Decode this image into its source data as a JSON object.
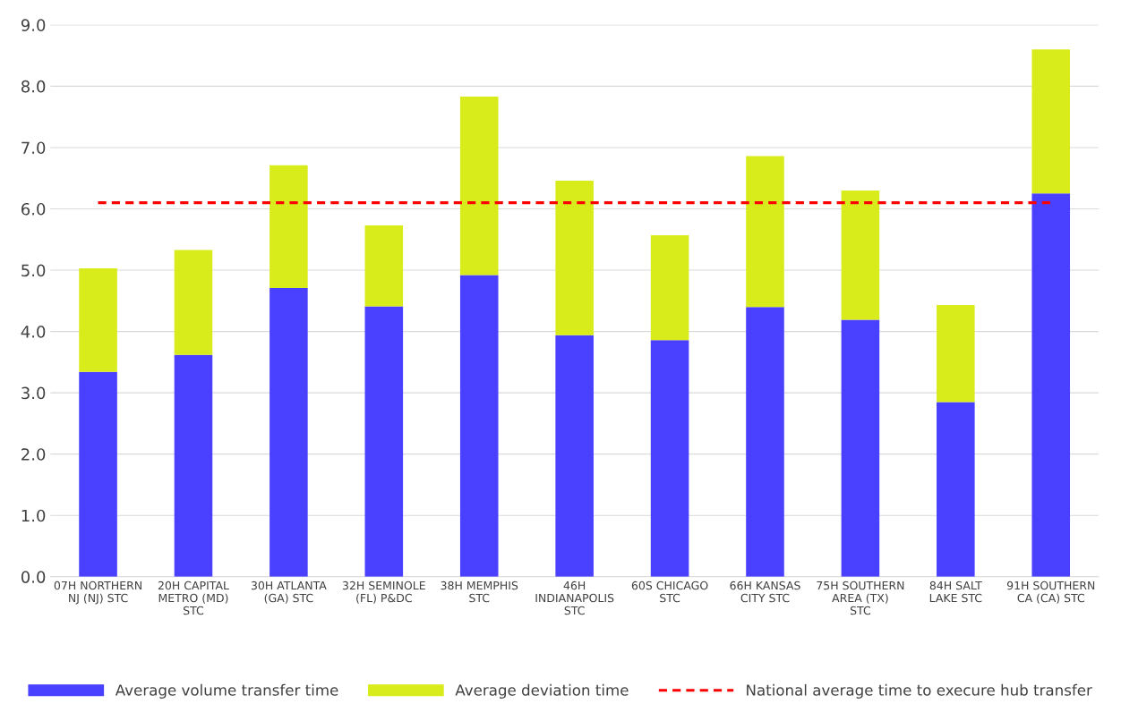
{
  "chart_data": {
    "type": "bar",
    "stacked": true,
    "categories": [
      "07H NORTHERN NJ (NJ) STC",
      "20H CAPITAL METRO (MD) STC",
      "30H ATLANTA (GA) STC",
      "32H SEMINOLE (FL) P&DC",
      "38H MEMPHIS STC",
      "46H INDIANAPOLIS STC",
      "60S CHICAGO STC",
      "66H KANSAS CITY STC",
      "75H SOUTHERN AREA (TX) STC",
      "84H SALT LAKE STC",
      "91H SOUTHERN CA (CA) STC"
    ],
    "series": [
      {
        "name": "Average volume transfer time",
        "color": "#4a40ff",
        "values": [
          3.34,
          3.62,
          4.71,
          4.41,
          4.92,
          3.94,
          3.86,
          4.4,
          4.19,
          2.85,
          6.25
        ]
      },
      {
        "name": "Average deviation time",
        "color": "#d9ec1b",
        "values": [
          1.69,
          1.71,
          2.0,
          1.32,
          2.91,
          2.52,
          1.71,
          2.46,
          2.11,
          1.58,
          2.35
        ]
      }
    ],
    "ref_lines": [
      {
        "axis": "y",
        "value": 6.1,
        "label": "National average time to execure hub transfer",
        "color": "#ff0000",
        "line_style": "dashed"
      }
    ],
    "ylim": [
      0,
      9
    ],
    "yticks": [
      {
        "value": 0,
        "label": "0.0"
      },
      {
        "value": 1,
        "label": "1.0"
      },
      {
        "value": 2,
        "label": "2.0"
      },
      {
        "value": 3,
        "label": "3.0"
      },
      {
        "value": 4,
        "label": "4.0"
      },
      {
        "value": 5,
        "label": "5.0"
      },
      {
        "value": 6,
        "label": "6.0"
      },
      {
        "value": 7,
        "label": "7.0"
      },
      {
        "value": 8,
        "label": "8.0"
      },
      {
        "value": 9,
        "label": "9.0"
      }
    ],
    "grid": "y",
    "legend": "bottom"
  }
}
